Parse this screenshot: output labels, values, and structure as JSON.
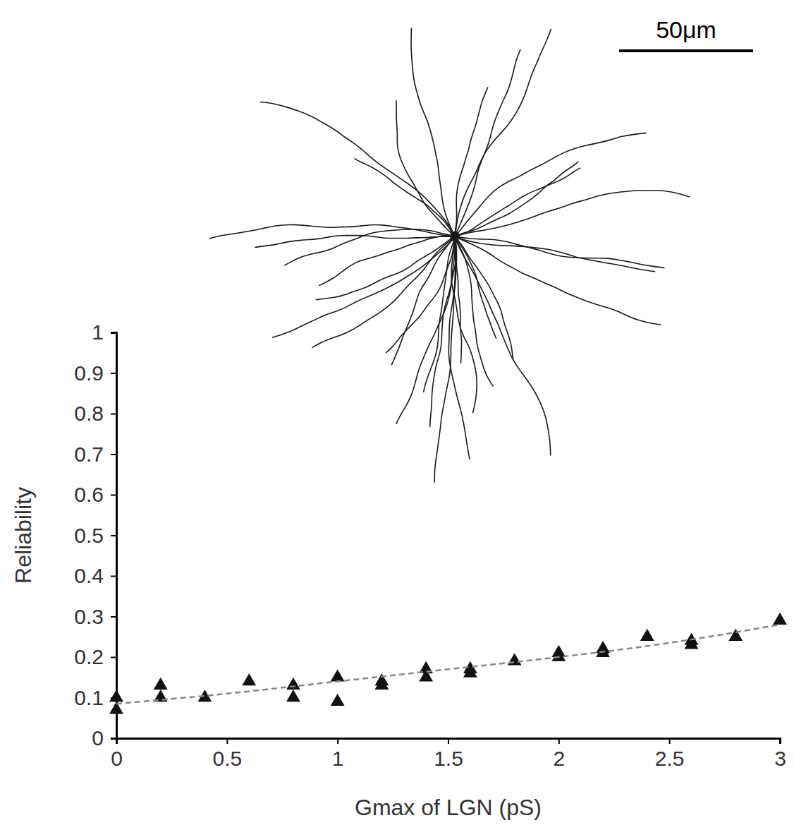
{
  "chart_data": {
    "type": "scatter",
    "x_label": "Gmax of LGN (pS)",
    "y_label": "Reliability",
    "xlim": [
      0,
      3
    ],
    "ylim": [
      0,
      1
    ],
    "xticks": [
      0,
      0.5,
      1,
      1.5,
      2,
      2.5,
      3
    ],
    "yticks": [
      0,
      0.1,
      0.2,
      0.3,
      0.4,
      0.5,
      0.6,
      0.7,
      0.8,
      0.9,
      1
    ],
    "series": [
      {
        "type": "scatter",
        "marker": "triangle",
        "color": "#111111",
        "x": [
          0,
          0,
          0.2,
          0.2,
          0.4,
          0.6,
          0.8,
          0.8,
          1,
          1,
          1.2,
          1.2,
          1.4,
          1.4,
          1.6,
          1.6,
          1.8,
          2,
          2,
          2.2,
          2.2,
          2.4,
          2.6,
          2.6,
          2.8,
          3
        ],
        "values": [
          0.1,
          0.07,
          0.13,
          0.1,
          0.1,
          0.14,
          0.13,
          0.1,
          0.15,
          0.09,
          0.14,
          0.13,
          0.17,
          0.15,
          0.17,
          0.16,
          0.19,
          0.21,
          0.2,
          0.22,
          0.21,
          0.25,
          0.24,
          0.23,
          0.25,
          0.29
        ]
      },
      {
        "type": "line",
        "line_style": "dashed",
        "color": "#888888",
        "x": [
          0,
          0.5,
          1,
          1.5,
          2,
          2.5,
          3
        ],
        "values": [
          0.085,
          0.11,
          0.14,
          0.17,
          0.2,
          0.235,
          0.28
        ]
      }
    ],
    "annotations": [
      {
        "text": "50μm"
      }
    ]
  }
}
